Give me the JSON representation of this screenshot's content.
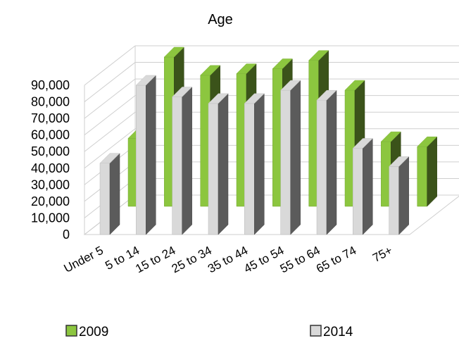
{
  "chart_data": {
    "type": "bar",
    "title": "Age",
    "xlabel": "",
    "ylabel": "",
    "categories": [
      "Under 5",
      "5 to 14",
      "15 to 24",
      "25 to 34",
      "35 to 44",
      "45 to 54",
      "55 to 64",
      "65 to 74",
      "75+"
    ],
    "series": [
      {
        "name": "2009",
        "values": [
          41000,
          90000,
          79000,
          80000,
          83000,
          88000,
          70000,
          39000,
          36000
        ],
        "color": "#8cc63f"
      },
      {
        "name": "2014",
        "values": [
          43000,
          90000,
          83000,
          79000,
          79000,
          87000,
          81000,
          52000,
          41000
        ],
        "color": "#d9d9d9"
      }
    ],
    "y_ticks": [
      "0",
      "10,000",
      "20,000",
      "30,000",
      "40,000",
      "50,000",
      "60,000",
      "70,000",
      "80,000",
      "90,000"
    ],
    "ylim": [
      0,
      90000
    ],
    "grid": true,
    "legend_position": "bottom",
    "projection": "3d-clustered"
  }
}
